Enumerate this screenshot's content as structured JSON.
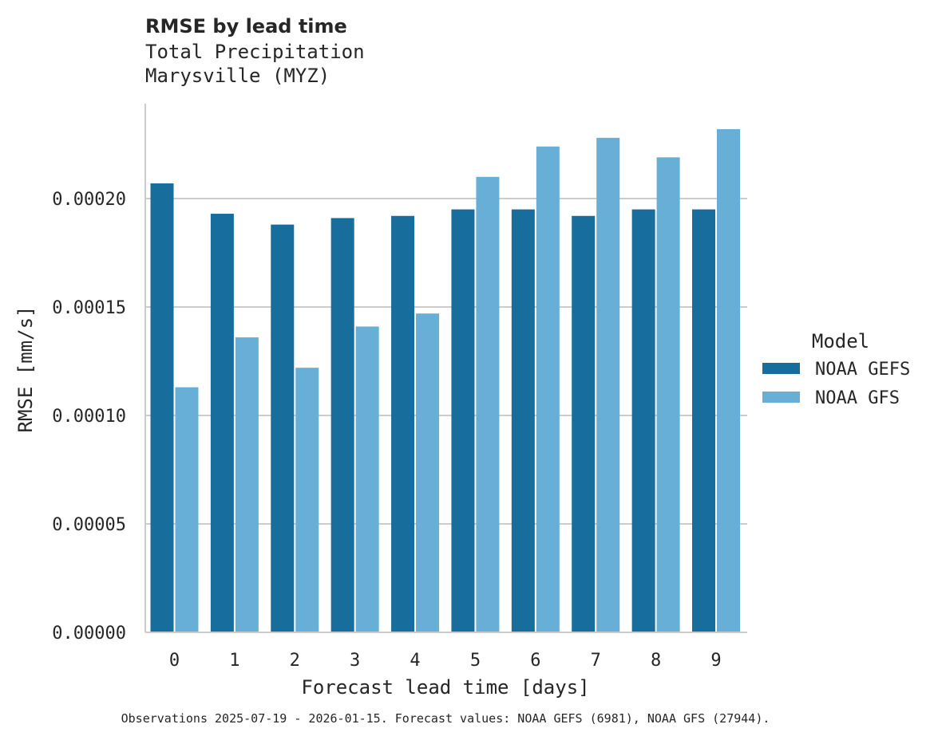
{
  "chart_data": {
    "type": "bar",
    "title": "RMSE by lead time",
    "subtitle_lines": [
      "Total Precipitation",
      "Marysville (MYZ)"
    ],
    "xlabel": "Forecast lead time [days]",
    "ylabel": "RMSE [mm/s]",
    "categories": [
      "0",
      "1",
      "2",
      "3",
      "4",
      "5",
      "6",
      "7",
      "8",
      "9"
    ],
    "ylim": [
      0,
      0.000243
    ],
    "yticks": [
      0,
      5e-05,
      0.0001,
      0.00015,
      0.0002
    ],
    "ytick_labels": [
      "0.00000",
      "0.00005",
      "0.00010",
      "0.00015",
      "0.00020"
    ],
    "grid": "horizontal",
    "legend": {
      "title": "Model",
      "placement": "right"
    },
    "series": [
      {
        "name": "NOAA GEFS",
        "color": "#176d9c",
        "values": [
          0.000207,
          0.000193,
          0.000188,
          0.000191,
          0.000192,
          0.000195,
          0.000195,
          0.000192,
          0.000195,
          0.000195
        ]
      },
      {
        "name": "NOAA GFS",
        "color": "#67afd7",
        "values": [
          0.000113,
          0.000136,
          0.000122,
          0.000141,
          0.000147,
          0.00021,
          0.000224,
          0.000228,
          0.000219,
          0.000232
        ]
      }
    ],
    "footer": "Observations 2025-07-19 - 2026-01-15. Forecast values: NOAA GEFS (6981), NOAA GFS (27944)."
  }
}
